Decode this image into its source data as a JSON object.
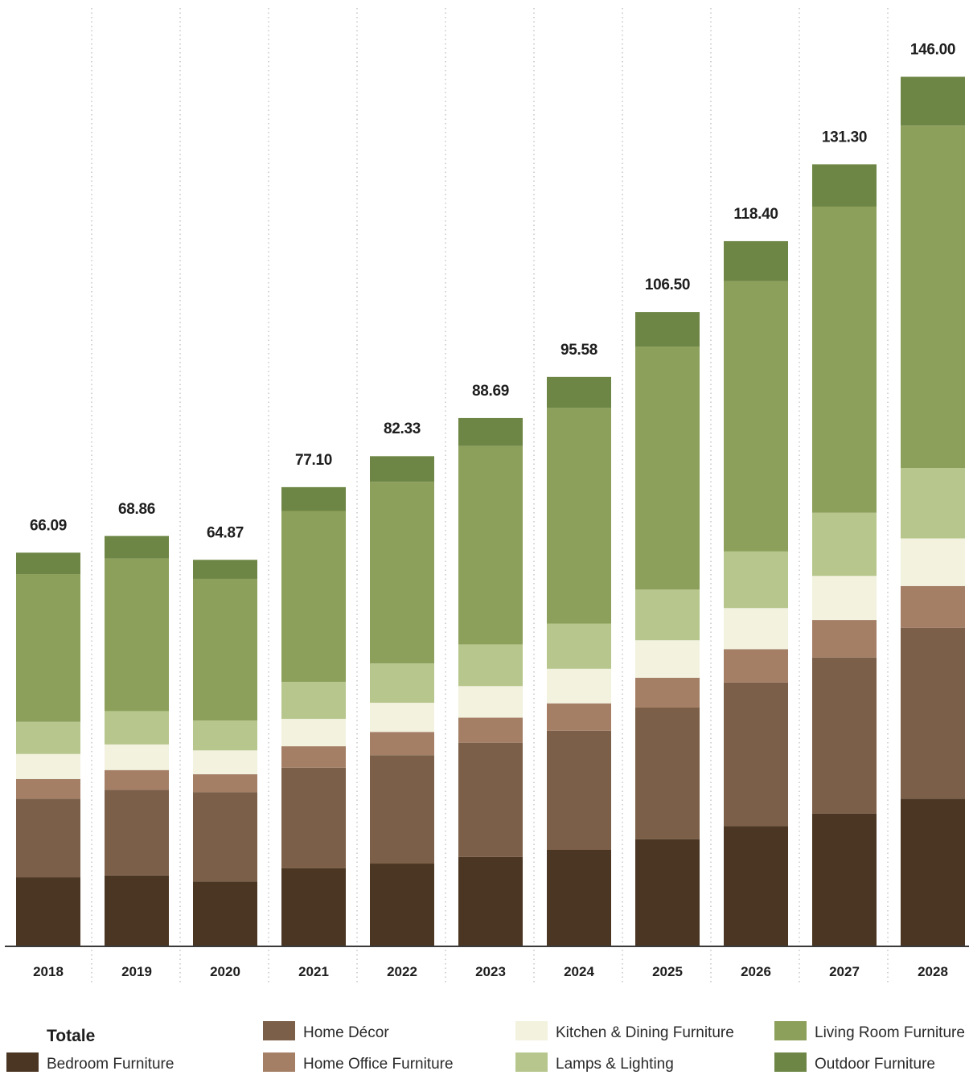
{
  "chart_data": {
    "type": "bar",
    "stacked": true,
    "categories": [
      "2018",
      "2019",
      "2020",
      "2021",
      "2022",
      "2023",
      "2024",
      "2025",
      "2026",
      "2027",
      "2028"
    ],
    "totals": [
      66.09,
      68.86,
      64.87,
      77.1,
      82.33,
      88.69,
      95.58,
      106.5,
      118.4,
      131.3,
      146.0
    ],
    "total_labels": [
      "66.09",
      "68.86",
      "64.87",
      "77.10",
      "82.33",
      "88.69",
      "95.58",
      "106.50",
      "118.40",
      "131.30",
      "146.00"
    ],
    "series": [
      {
        "name": "Bedroom Furniture",
        "color": "#4a3623",
        "values": [
          11.6,
          11.9,
          10.9,
          13.1,
          13.9,
          15.0,
          16.2,
          18.0,
          20.2,
          22.3,
          24.8
        ]
      },
      {
        "name": "Home Décor",
        "color": "#7c5f48",
        "values": [
          13.2,
          14.4,
          15.0,
          16.9,
          18.2,
          19.2,
          20.0,
          22.1,
          24.1,
          26.2,
          28.7
        ]
      },
      {
        "name": "Home Office Furniture",
        "color": "#a47f66",
        "values": [
          3.3,
          3.3,
          3.0,
          3.6,
          3.9,
          4.2,
          4.6,
          5.0,
          5.6,
          6.3,
          7.0
        ]
      },
      {
        "name": "Kitchen & Dining Furniture",
        "color": "#f2f2df",
        "values": [
          4.2,
          4.3,
          4.0,
          4.6,
          4.9,
          5.3,
          5.8,
          6.3,
          6.9,
          7.4,
          8.0
        ]
      },
      {
        "name": "Lamps & Lighting",
        "color": "#b7c68c",
        "values": [
          5.4,
          5.6,
          5.0,
          6.2,
          6.6,
          7.0,
          7.6,
          8.5,
          9.5,
          10.6,
          11.8
        ]
      },
      {
        "name": "Living Room Furniture",
        "color": "#8da05b",
        "values": [
          24.8,
          25.6,
          23.8,
          28.7,
          30.5,
          33.3,
          36.2,
          40.8,
          45.4,
          51.4,
          57.5
        ]
      },
      {
        "name": "Outdoor Furniture",
        "color": "#6e8645",
        "values": [
          3.6,
          3.8,
          3.2,
          4.0,
          4.3,
          4.7,
          5.2,
          5.8,
          6.7,
          7.1,
          8.2
        ]
      }
    ],
    "ylim": [
      0,
      157
    ],
    "legend_title": "Totale",
    "legend_position": "bottom"
  },
  "style": {
    "axis_color": "#3a3a3a",
    "grid_color": "#a8a8a8",
    "background": "#ffffff"
  }
}
